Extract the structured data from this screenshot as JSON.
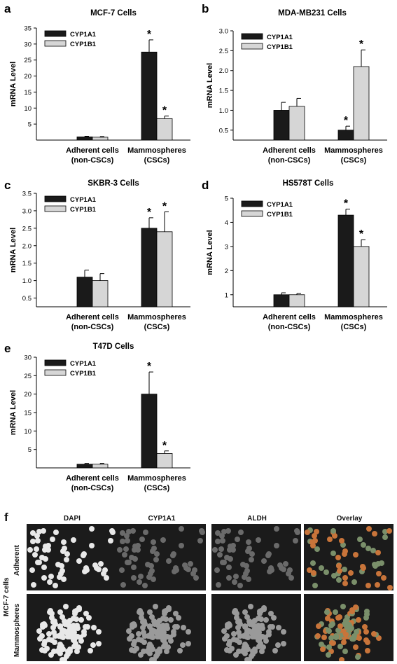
{
  "colors": {
    "cyp1a1": "#1a1a1a",
    "cyp1b1": "#d6d6d6"
  },
  "chart_data": [
    {
      "panel": "a",
      "type": "bar",
      "title": "MCF-7 Cells",
      "ylabel": "mRNA  Level",
      "categories": [
        "Adherent cells\n(non-CSCs)",
        "Mammospheres\n(CSCs)"
      ],
      "ylim": [
        0,
        35
      ],
      "yticks": [
        5,
        10,
        15,
        20,
        25,
        30,
        35
      ],
      "legend": "top-left",
      "series": [
        {
          "name": "CYP1A1",
          "values": [
            1.0,
            27.5
          ],
          "errors": [
            0.2,
            3.8
          ],
          "stars": [
            false,
            true
          ]
        },
        {
          "name": "CYP1B1",
          "values": [
            0.9,
            6.7
          ],
          "errors": [
            0.2,
            0.8
          ],
          "stars": [
            false,
            true
          ]
        }
      ]
    },
    {
      "panel": "b",
      "type": "bar",
      "title": "MDA-MB231 Cells",
      "ylabel": "mRNA  Level",
      "categories": [
        "Adherent cells\n(non-CSCs)",
        "Mammospheres\n(CSCs)"
      ],
      "ylim": [
        0.25,
        3.0
      ],
      "yticks": [
        0.5,
        1.0,
        1.5,
        2.0,
        2.5,
        3.0
      ],
      "legend": "top-left",
      "series": [
        {
          "name": "CYP1A1",
          "values": [
            1.0,
            0.5
          ],
          "errors": [
            0.2,
            0.1
          ],
          "stars": [
            false,
            true
          ]
        },
        {
          "name": "CYP1B1",
          "values": [
            1.1,
            2.1
          ],
          "errors": [
            0.2,
            0.42
          ],
          "stars": [
            false,
            true
          ]
        }
      ]
    },
    {
      "panel": "c",
      "type": "bar",
      "title": "SKBR-3 Cells",
      "ylabel": "mRNA  Level",
      "categories": [
        "Adherent cells\n(non-CSCs)",
        "Mammospheres\n(CSCs)"
      ],
      "ylim": [
        0.25,
        3.5
      ],
      "yticks": [
        0.5,
        1.0,
        1.5,
        2.0,
        2.5,
        3.0,
        3.5
      ],
      "legend": "top-left",
      "series": [
        {
          "name": "CYP1A1",
          "values": [
            1.1,
            2.5
          ],
          "errors": [
            0.2,
            0.3
          ],
          "stars": [
            false,
            true
          ]
        },
        {
          "name": "CYP1B1",
          "values": [
            1.0,
            2.4
          ],
          "errors": [
            0.2,
            0.57
          ],
          "stars": [
            false,
            true
          ]
        }
      ]
    },
    {
      "panel": "d",
      "type": "bar",
      "title": "HS578T Cells",
      "ylabel": "mRNA  Level",
      "categories": [
        "Adherent cells\n(non-CSCs)",
        "Mammospheres\n(CSCs)"
      ],
      "ylim": [
        0.5,
        5
      ],
      "yticks": [
        1,
        2,
        3,
        4,
        5
      ],
      "legend": "top-left",
      "series": [
        {
          "name": "CYP1A1",
          "values": [
            1.0,
            4.3
          ],
          "errors": [
            0.08,
            0.25
          ],
          "stars": [
            false,
            true
          ]
        },
        {
          "name": "CYP1B1",
          "values": [
            1.0,
            3.0
          ],
          "errors": [
            0.05,
            0.28
          ],
          "stars": [
            false,
            true
          ]
        }
      ]
    },
    {
      "panel": "e",
      "type": "bar",
      "title": "T47D Cells",
      "ylabel": "mRNA  Level",
      "categories": [
        "Adherent cells\n(non-CSCs)",
        "Mammospheres\n(CSCs)"
      ],
      "ylim": [
        0,
        30
      ],
      "yticks": [
        5,
        10,
        15,
        20,
        25,
        30
      ],
      "legend": "top-left",
      "series": [
        {
          "name": "CYP1A1",
          "values": [
            1.0,
            20.0
          ],
          "errors": [
            0.2,
            6.0
          ],
          "stars": [
            false,
            true
          ]
        },
        {
          "name": "CYP1B1",
          "values": [
            1.0,
            3.9
          ],
          "errors": [
            0.2,
            0.7
          ],
          "stars": [
            false,
            true
          ]
        }
      ]
    }
  ],
  "image_panel": {
    "letter": "f",
    "columns": [
      "DAPI",
      "CYP1A1",
      "ALDH",
      "Overlay"
    ],
    "group_label": "MCF-7 cells",
    "rows": [
      "Adherent",
      "Mammospheres"
    ]
  }
}
